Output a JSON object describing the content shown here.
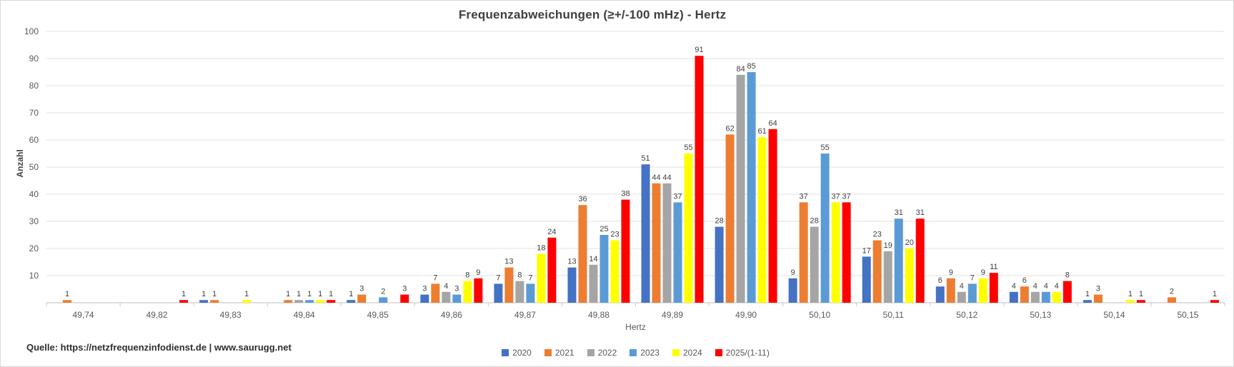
{
  "title": "Frequenzabweichungen (≥+/-100 mHz) - Hertz",
  "source": "Quelle: https://netzfrequenzinfodienst.de | www.saurugg.net",
  "y_axis": {
    "title": "Anzahl",
    "ticks": [
      10,
      20,
      30,
      40,
      50,
      60,
      70,
      80,
      90,
      100
    ]
  },
  "x_axis": {
    "title": "Hertz"
  },
  "chart_data": {
    "type": "bar",
    "title": "Frequenzabweichungen (≥+/-100 mHz) - Hertz",
    "xlabel": "Hertz",
    "ylabel": "Anzahl",
    "ylim": [
      0,
      100
    ],
    "y_tick_step": 10,
    "grid": true,
    "legend_position": "bottom",
    "categories": [
      "49,74",
      "49,82",
      "49,83",
      "49,84",
      "49,85",
      "49,86",
      "49,87",
      "49,88",
      "49,89",
      "49,90",
      "50,10",
      "50,11",
      "50,12",
      "50,13",
      "50,14",
      "50,15"
    ],
    "series": [
      {
        "name": "2020",
        "color": "#4472C4",
        "values": [
          0,
          0,
          1,
          0,
          1,
          3,
          7,
          13,
          51,
          28,
          9,
          17,
          6,
          4,
          1,
          0
        ]
      },
      {
        "name": "2021",
        "color": "#ED7D31",
        "values": [
          1,
          0,
          1,
          1,
          3,
          7,
          13,
          36,
          44,
          62,
          37,
          23,
          9,
          6,
          3,
          2
        ]
      },
      {
        "name": "2022",
        "color": "#A5A5A5",
        "values": [
          0,
          0,
          0,
          1,
          0,
          4,
          8,
          14,
          44,
          84,
          28,
          19,
          4,
          4,
          0,
          0
        ]
      },
      {
        "name": "2023",
        "color": "#5B9BD5",
        "values": [
          0,
          0,
          0,
          1,
          2,
          3,
          7,
          25,
          37,
          85,
          55,
          31,
          7,
          4,
          0,
          0
        ]
      },
      {
        "name": "2024",
        "color": "#FFFF00",
        "values": [
          0,
          0,
          1,
          1,
          0,
          8,
          18,
          23,
          55,
          61,
          37,
          20,
          9,
          4,
          1,
          0
        ]
      },
      {
        "name": "2025/(1-11)",
        "color": "#FF0000",
        "values": [
          0,
          1,
          0,
          1,
          3,
          9,
          24,
          38,
          91,
          64,
          37,
          31,
          11,
          8,
          1,
          1
        ]
      }
    ],
    "data_labels": true
  }
}
